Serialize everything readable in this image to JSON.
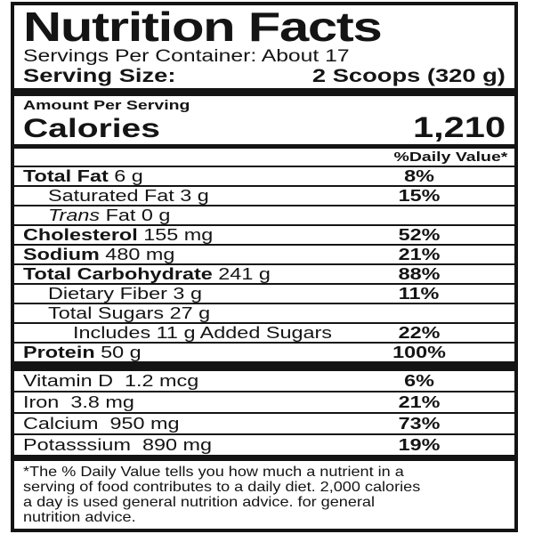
{
  "label": {
    "title": "Nutrition Facts",
    "servings_per_container": "Servings Per Container: About 17",
    "serving_size": {
      "label": "Serving Size:",
      "value": "2 Scoops (320 g)"
    },
    "amount_per_serving": "Amount Per Serving",
    "calories": {
      "label": "Calories",
      "value": "1,210"
    },
    "daily_value_header": "%Daily Value*",
    "nutrients": [
      {
        "parts": [
          {
            "t": "Total Fat",
            "b": true
          },
          {
            "t": " 6 g"
          }
        ],
        "pct": "8%",
        "indent": 0
      },
      {
        "parts": [
          {
            "t": "Saturated Fat 3 g"
          }
        ],
        "pct": "15%",
        "indent": 1
      },
      {
        "parts": [
          {
            "t": "Trans",
            "i": true
          },
          {
            "t": " Fat 0 g"
          }
        ],
        "pct": "",
        "indent": 1
      },
      {
        "parts": [
          {
            "t": "Cholesterol",
            "b": true
          },
          {
            "t": " 155 mg"
          }
        ],
        "pct": "52%",
        "indent": 0
      },
      {
        "parts": [
          {
            "t": "Sodium",
            "b": true
          },
          {
            "t": " 480 mg"
          }
        ],
        "pct": "21%",
        "indent": 0
      },
      {
        "parts": [
          {
            "t": "Total Carbohydrate",
            "b": true
          },
          {
            "t": " 241 g"
          }
        ],
        "pct": "88%",
        "indent": 0
      },
      {
        "parts": [
          {
            "t": "Dietary Fiber 3 g"
          }
        ],
        "pct": "11%",
        "indent": 1
      },
      {
        "parts": [
          {
            "t": "Total Sugars 27 g"
          }
        ],
        "pct": "",
        "indent": 1
      },
      {
        "parts": [
          {
            "t": "Includes 11 g Added Sugars"
          }
        ],
        "pct": "22%",
        "indent": 2
      },
      {
        "parts": [
          {
            "t": "Protein",
            "b": true
          },
          {
            "t": " 50 g"
          }
        ],
        "pct": "100%",
        "indent": 0
      }
    ],
    "vitamins": [
      {
        "parts": [
          {
            "t": "Vitamin D  1.2 mcg"
          }
        ],
        "pct": "6%",
        "indent": 0
      },
      {
        "parts": [
          {
            "t": "Iron  3.8 mg"
          }
        ],
        "pct": "21%",
        "indent": 0
      },
      {
        "parts": [
          {
            "t": "Calcium  950 mg"
          }
        ],
        "pct": "73%",
        "indent": 0
      },
      {
        "parts": [
          {
            "t": "Potasssium  890 mg"
          }
        ],
        "pct": "19%",
        "indent": 0
      }
    ],
    "footnote_lines": [
      "*The % Daily Value tells you how much a nutrient in a",
      "serving of food contributes to a daily diet. 2,000 calories",
      "a day is used general nutrition advice. for general",
      "nutrition advice."
    ],
    "colors": {
      "ink": "#141414",
      "background": "#ffffff"
    }
  }
}
